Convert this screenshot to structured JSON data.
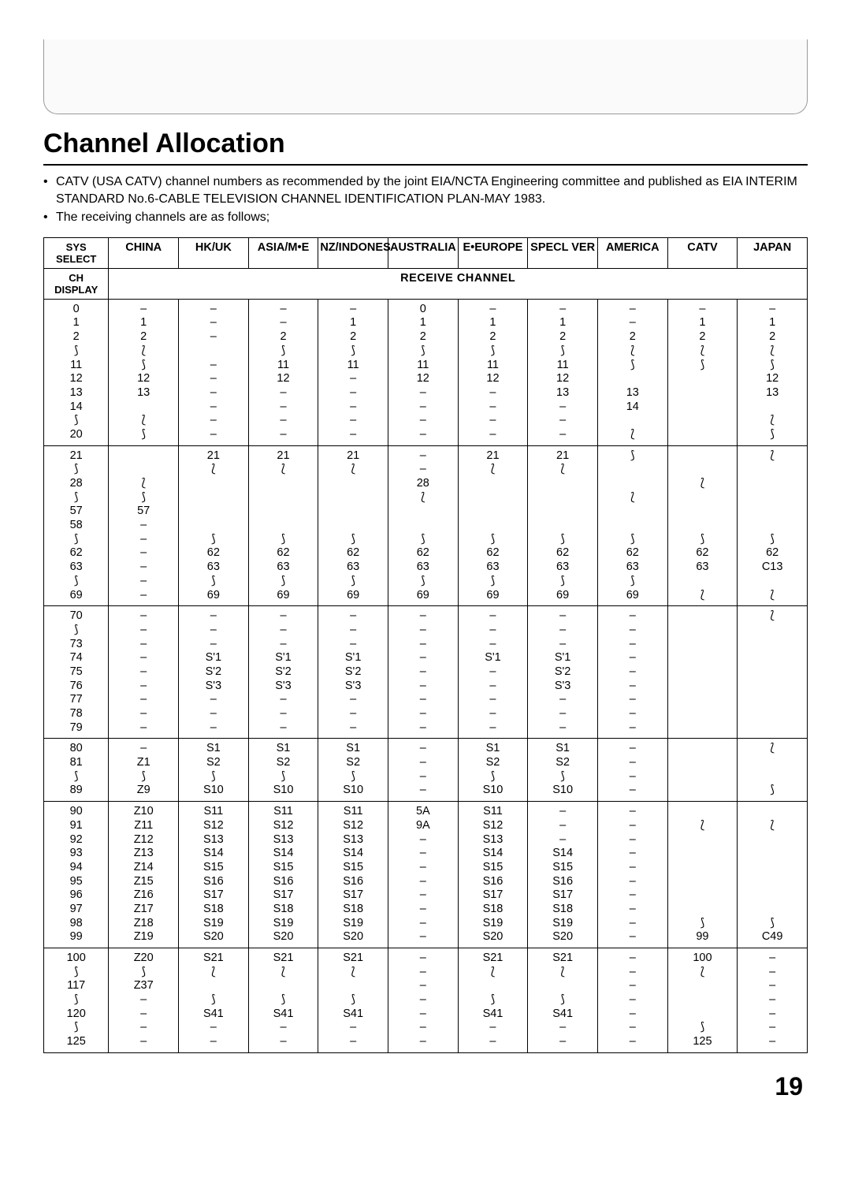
{
  "title": "Channel Allocation",
  "page_number": "19",
  "notes": [
    "CATV (USA CATV) channel numbers as recommended by the joint EIA/NCTA Engineering committee and published as EIA INTERIM STANDARD No.6-CABLE TELEVISION CHANNEL IDENTIFICATION PLAN-MAY 1983.",
    "The receiving channels are as follows;"
  ],
  "header": {
    "sys_select": "SYS SELECT",
    "ch_display": "CH DISPLAY",
    "receive": "RECEIVE CHANNEL",
    "cols": [
      "CHINA",
      "HK/UK",
      "ASIA/M•E",
      "NZ/INDONES",
      "AUSTRALIA",
      "E•EUROPE",
      "SPECL VER",
      "AMERICA",
      "CATV",
      "JAPAN"
    ]
  },
  "blocks": [
    {
      "ch": "0\n1\n2\n⟆\n11\n12\n13\n14\n⟆\n20",
      "cols": [
        "–\n1\n2\n⟅\n⟆\n12\n13\n\n⟅\n⟆",
        "–\n–\n–\n\n–\n–\n–\n–\n–\n–",
        "–\n–\n2\n⟆\n11\n12\n–\n–\n–\n–",
        "–\n1\n2\n⟆\n11\n–\n–\n–\n–\n–",
        "0\n1\n2\n⟆\n11\n12\n–\n–\n–\n–",
        "–\n1\n2\n⟆\n11\n12\n–\n–\n–\n–",
        "–\n1\n2\n⟆\n11\n12\n13\n–\n–\n–",
        "–\n–\n2\n⟅\n⟆\n\n13\n14\n\n⟅",
        "–\n1\n2\n⟅\n⟆\n\n\n\n\n",
        "–\n1\n2\n⟅\n⟆\n12\n13\n\n⟅\n⟆"
      ]
    },
    {
      "ch": "21\n⟆\n28\n⟆\n57\n58\n⟆\n62\n63\n⟆\n69",
      "cols": [
        "\n\n⟅\n⟆\n57\n–\n–\n–\n–\n–\n–",
        "21\n⟅\n\n\n\n\n⟆\n62\n63\n⟆\n69",
        "21\n⟅\n\n\n\n\n⟆\n62\n63\n⟆\n69",
        "21\n⟅\n\n\n\n\n⟆\n62\n63\n⟆\n69",
        "–\n–\n28\n⟅\n\n\n⟆\n62\n63\n⟆\n69",
        "21\n⟅\n\n\n\n\n⟆\n62\n63\n⟆\n69",
        "21\n⟅\n\n\n\n\n⟆\n62\n63\n⟆\n69",
        "⟆\n\n\n⟅\n\n\n⟆\n62\n63\n⟆\n69",
        "\n\n⟅\n\n\n\n⟆\n62\n63\n\n⟅",
        "⟅\n\n\n\n\n\n⟆\n62\nC13\n\n⟅"
      ]
    },
    {
      "ch": "70\n⟆\n73\n74\n75\n76\n77\n78\n79",
      "cols": [
        "–\n–\n–\n–\n–\n–\n–\n–\n–",
        "–\n–\n–\nS'1\nS'2\nS'3\n–\n–\n–",
        "–\n–\n–\nS'1\nS'2\nS'3\n–\n–\n–",
        "–\n–\n–\nS'1\nS'2\nS'3\n–\n–\n–",
        "–\n–\n–\n–\n–\n–\n–\n–\n–",
        "–\n–\n–\nS'1\n–\n–\n–\n–\n–",
        "–\n–\n–\nS'1\nS'2\nS'3\n–\n–\n–",
        "–\n–\n–\n–\n–\n–\n–\n–\n–",
        "",
        "⟅\n\n\n\n\n\n\n\n"
      ]
    },
    {
      "ch": "80\n81\n⟆\n89",
      "cols": [
        "–\nZ1\n⟆\nZ9",
        "S1\nS2\n⟆\nS10",
        "S1\nS2\n⟆\nS10",
        "S1\nS2\n⟆\nS10",
        "–\n–\n–\n–",
        "S1\nS2\n⟆\nS10",
        "S1\nS2\n⟆\nS10",
        "–\n–\n–\n–",
        "",
        "⟅\n\n\n⟆"
      ]
    },
    {
      "ch": "90\n91\n92\n93\n94\n95\n96\n97\n98\n99",
      "cols": [
        "Z10\nZ11\nZ12\nZ13\nZ14\nZ15\nZ16\nZ17\nZ18\nZ19",
        "S11\nS12\nS13\nS14\nS15\nS16\nS17\nS18\nS19\nS20",
        "S11\nS12\nS13\nS14\nS15\nS16\nS17\nS18\nS19\nS20",
        "S11\nS12\nS13\nS14\nS15\nS16\nS17\nS18\nS19\nS20",
        "5A\n9A\n–\n–\n–\n–\n–\n–\n–\n–",
        "S11\nS12\nS13\nS14\nS15\nS16\nS17\nS18\nS19\nS20",
        "–\n–\n–\nS14\nS15\nS16\nS17\nS18\nS19\nS20",
        "–\n–\n–\n–\n–\n–\n–\n–\n–\n–",
        "\n⟅\n\n\n\n\n\n\n⟆\n99",
        "\n⟅\n\n\n\n\n\n\n⟆\nC49"
      ]
    },
    {
      "ch": "100\n⟆\n117\n⟆\n120\n⟆\n125",
      "cols": [
        "Z20\n⟆\nZ37\n–\n–\n–\n–",
        "S21\n⟅\n\n⟆\nS41\n–\n–",
        "S21\n⟅\n\n⟆\nS41\n–\n–",
        "S21\n⟅\n\n⟆\nS41\n–\n–",
        "–\n–\n–\n–\n–\n–\n–",
        "S21\n⟅\n\n⟆\nS41\n–\n–",
        "S21\n⟅\n\n⟆\nS41\n–\n–",
        "–\n–\n–\n–\n–\n–\n–",
        "100\n⟅\n\n\n\n⟆\n125",
        "–\n–\n–\n–\n–\n–\n–"
      ]
    }
  ]
}
